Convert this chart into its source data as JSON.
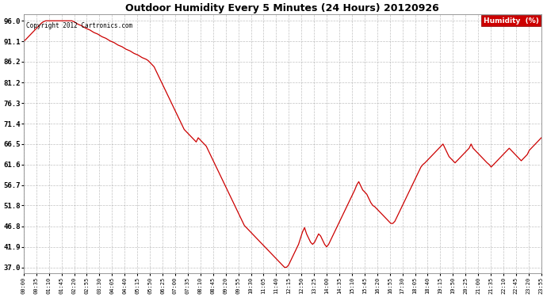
{
  "title": "Outdoor Humidity Every 5 Minutes (24 Hours) 20120926",
  "copyright_text": "Copyright 2012 Cartronics.com",
  "legend_label": "Humidity  (%)",
  "legend_bg": "#cc0000",
  "legend_fg": "#ffffff",
  "line_color": "#cc0000",
  "bg_color": "#ffffff",
  "grid_color": "#999999",
  "yticks": [
    37.0,
    41.9,
    46.8,
    51.8,
    56.7,
    61.6,
    66.5,
    71.4,
    76.3,
    81.2,
    86.2,
    91.1,
    96.0
  ],
  "ymin": 35.5,
  "ymax": 97.5,
  "xtick_labels": [
    "00:00",
    "00:35",
    "01:10",
    "01:45",
    "02:20",
    "02:55",
    "03:30",
    "04:05",
    "04:40",
    "05:15",
    "05:50",
    "06:25",
    "07:00",
    "07:35",
    "08:10",
    "08:45",
    "09:20",
    "09:55",
    "10:30",
    "11:05",
    "11:40",
    "12:15",
    "12:50",
    "13:25",
    "14:00",
    "14:35",
    "15:10",
    "15:45",
    "16:20",
    "16:55",
    "17:30",
    "18:05",
    "18:40",
    "19:15",
    "19:50",
    "20:25",
    "21:00",
    "21:35",
    "22:10",
    "22:45",
    "23:20",
    "23:55"
  ],
  "humidity_values": [
    91.1,
    91.5,
    92.0,
    92.5,
    93.0,
    93.5,
    94.0,
    94.5,
    95.0,
    95.5,
    95.8,
    96.0,
    96.0,
    96.0,
    96.0,
    96.0,
    96.0,
    96.0,
    96.0,
    96.0,
    96.0,
    96.0,
    96.0,
    96.0,
    96.0,
    95.8,
    95.5,
    95.2,
    95.0,
    94.8,
    94.5,
    94.2,
    94.0,
    93.8,
    93.5,
    93.2,
    93.0,
    92.8,
    92.5,
    92.2,
    92.0,
    91.8,
    91.5,
    91.2,
    91.0,
    90.8,
    90.5,
    90.2,
    90.0,
    89.8,
    89.5,
    89.2,
    89.0,
    88.8,
    88.5,
    88.2,
    88.0,
    87.8,
    87.5,
    87.2,
    87.0,
    86.8,
    86.5,
    86.0,
    85.5,
    85.0,
    84.0,
    83.0,
    82.0,
    81.0,
    80.0,
    79.0,
    78.0,
    77.0,
    76.0,
    75.0,
    74.0,
    73.0,
    72.0,
    71.0,
    70.0,
    69.5,
    69.0,
    68.5,
    68.0,
    67.5,
    67.0,
    68.0,
    67.5,
    67.0,
    66.5,
    66.0,
    65.0,
    64.0,
    63.0,
    62.0,
    61.0,
    60.0,
    59.0,
    58.0,
    57.0,
    56.0,
    55.0,
    54.0,
    53.0,
    52.0,
    51.0,
    50.0,
    49.0,
    48.0,
    47.0,
    46.5,
    46.0,
    45.5,
    45.0,
    44.5,
    44.0,
    43.5,
    43.0,
    42.5,
    42.0,
    41.5,
    41.0,
    40.5,
    40.0,
    39.5,
    39.0,
    38.5,
    38.0,
    37.5,
    37.0,
    37.0,
    37.5,
    38.5,
    39.5,
    40.5,
    41.5,
    42.5,
    44.0,
    45.5,
    46.5,
    45.0,
    44.0,
    43.0,
    42.5,
    43.0,
    44.0,
    45.0,
    44.5,
    43.5,
    42.5,
    41.9,
    42.5,
    43.5,
    44.5,
    45.5,
    46.5,
    47.5,
    48.5,
    49.5,
    50.5,
    51.5,
    52.5,
    53.5,
    54.5,
    55.5,
    56.7,
    57.5,
    56.5,
    55.5,
    55.0,
    54.5,
    53.5,
    52.5,
    51.8,
    51.5,
    51.0,
    50.5,
    50.0,
    49.5,
    49.0,
    48.5,
    48.0,
    47.5,
    47.5,
    48.0,
    49.0,
    50.0,
    51.0,
    52.0,
    53.0,
    54.0,
    55.0,
    56.0,
    57.0,
    58.0,
    59.0,
    60.0,
    61.0,
    61.6,
    62.0,
    62.5,
    63.0,
    63.5,
    64.0,
    64.5,
    65.0,
    65.5,
    66.0,
    66.5,
    65.5,
    64.5,
    63.5,
    63.0,
    62.5,
    62.0,
    62.5,
    63.0,
    63.5,
    64.0,
    64.5,
    65.0,
    65.5,
    66.5,
    65.5,
    65.0,
    64.5,
    64.0,
    63.5,
    63.0,
    62.5,
    62.0,
    61.6,
    61.0,
    61.5,
    62.0,
    62.5,
    63.0,
    63.5,
    64.0,
    64.5,
    65.0,
    65.5,
    65.0,
    64.5,
    64.0,
    63.5,
    63.0,
    62.5,
    63.0,
    63.5,
    64.0,
    65.0,
    65.5,
    66.0,
    66.5,
    67.0,
    67.5,
    68.0
  ]
}
